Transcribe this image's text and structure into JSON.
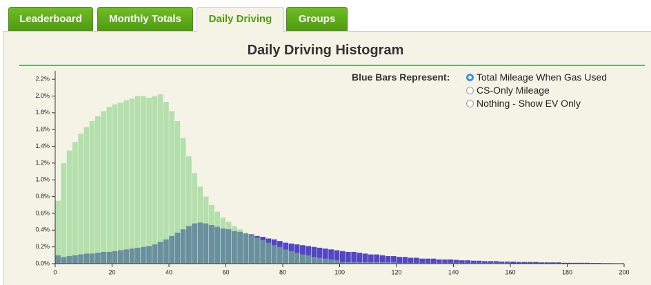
{
  "tabs": [
    "Leaderboard",
    "Monthly Totals",
    "Daily Driving",
    "Groups"
  ],
  "active_tab": 2,
  "chart_data": {
    "type": "histogram",
    "title": "Daily Driving Histogram",
    "legend_title": "Blue Bars Represent:",
    "options": [
      "Total Mileage When Gas Used",
      "CS-Only Mileage",
      "Nothing - Show EV Only"
    ],
    "selected_option": 0,
    "bins": [
      0,
      2,
      4,
      6,
      8,
      10,
      12,
      14,
      16,
      18,
      20,
      22,
      24,
      26,
      28,
      30,
      32,
      34,
      36,
      38,
      40,
      42,
      44,
      46,
      48,
      50,
      52,
      54,
      56,
      58,
      60,
      62,
      64,
      66,
      68,
      70,
      72,
      74,
      76,
      78,
      80,
      82,
      84,
      86,
      88,
      90,
      92,
      94,
      96,
      98,
      100,
      102,
      104,
      106,
      108,
      110,
      112,
      114,
      116,
      118,
      120,
      122,
      124,
      126,
      128,
      130,
      132,
      134,
      136,
      138,
      140,
      142,
      144,
      146,
      148,
      150,
      152,
      154,
      156,
      158,
      160,
      162,
      164,
      166,
      168,
      170,
      172,
      174,
      176,
      178,
      180,
      182,
      184,
      186,
      188,
      190,
      192,
      194,
      196,
      198,
      200
    ],
    "series": [
      {
        "color": "#4a3cc4",
        "values": [
          0.1,
          0.08,
          0.09,
          0.1,
          0.11,
          0.12,
          0.12,
          0.13,
          0.14,
          0.14,
          0.15,
          0.16,
          0.17,
          0.18,
          0.19,
          0.2,
          0.21,
          0.23,
          0.26,
          0.29,
          0.33,
          0.37,
          0.41,
          0.45,
          0.48,
          0.49,
          0.48,
          0.46,
          0.44,
          0.42,
          0.41,
          0.39,
          0.38,
          0.36,
          0.35,
          0.33,
          0.32,
          0.3,
          0.29,
          0.27,
          0.25,
          0.24,
          0.23,
          0.22,
          0.21,
          0.2,
          0.19,
          0.18,
          0.17,
          0.16,
          0.15,
          0.14,
          0.14,
          0.13,
          0.12,
          0.11,
          0.11,
          0.1,
          0.09,
          0.09,
          0.08,
          0.08,
          0.07,
          0.07,
          0.06,
          0.06,
          0.06,
          0.05,
          0.05,
          0.05,
          0.045,
          0.04,
          0.04,
          0.035,
          0.035,
          0.03,
          0.03,
          0.03,
          0.025,
          0.025,
          0.025,
          0.02,
          0.02,
          0.02,
          0.02,
          0.015,
          0.015,
          0.015,
          0.015,
          0.01,
          0.01,
          0.01,
          0.01,
          0.01,
          0.008,
          0.008,
          0.006,
          0.006,
          0.005,
          0.005
        ]
      },
      {
        "color": "#7ccf7c",
        "values": [
          0.75,
          1.2,
          1.35,
          1.45,
          1.55,
          1.63,
          1.7,
          1.76,
          1.82,
          1.87,
          1.9,
          1.92,
          1.95,
          1.97,
          2.0,
          2.0,
          1.98,
          2.0,
          2.02,
          1.93,
          1.82,
          1.7,
          1.5,
          1.28,
          1.08,
          0.92,
          0.8,
          0.7,
          0.62,
          0.55,
          0.5,
          0.45,
          0.41,
          0.37,
          0.34,
          0.31,
          0.28,
          0.25,
          0.22,
          0.2,
          0.17,
          0.15,
          0.13,
          0.11,
          0.1,
          0.08,
          0.07,
          0.06,
          0.05,
          0.04,
          0.02,
          0.02,
          0.02,
          0.02,
          0.02,
          0.02,
          0.02,
          0.02,
          0.02,
          0.02,
          0.01,
          0.01,
          0.01,
          0.01,
          0.01,
          0.01,
          0.01,
          0.01,
          0.01,
          0.01,
          0.01,
          0.01,
          0.01,
          0.01,
          0.01,
          0.01,
          0.01,
          0.01,
          0.01,
          0.01,
          0,
          0,
          0,
          0,
          0,
          0,
          0,
          0,
          0,
          0,
          0,
          0,
          0,
          0,
          0,
          0,
          0,
          0,
          0,
          0
        ]
      }
    ],
    "xlim": [
      0,
      200
    ],
    "xticks": [
      0,
      20,
      40,
      60,
      80,
      100,
      120,
      140,
      160,
      180,
      200
    ],
    "ylim": [
      0,
      2.3
    ],
    "yticks": [
      {
        "value": 0,
        "label": "0.0%"
      },
      {
        "value": 0.2,
        "label": "0.2%"
      },
      {
        "value": 0.4,
        "label": "0.4%"
      },
      {
        "value": 0.6,
        "label": "0.6%"
      },
      {
        "value": 0.8,
        "label": "0.8%"
      },
      {
        "value": 1.0,
        "label": "1.0%"
      },
      {
        "value": 1.2,
        "label": "1.2%"
      },
      {
        "value": 1.4,
        "label": "1.4%"
      },
      {
        "value": 1.6,
        "label": "1.6%"
      },
      {
        "value": 1.8,
        "label": "1.8%"
      },
      {
        "value": 2.0,
        "label": "2.0%"
      },
      {
        "value": 2.2,
        "label": "2.2%"
      }
    ]
  }
}
